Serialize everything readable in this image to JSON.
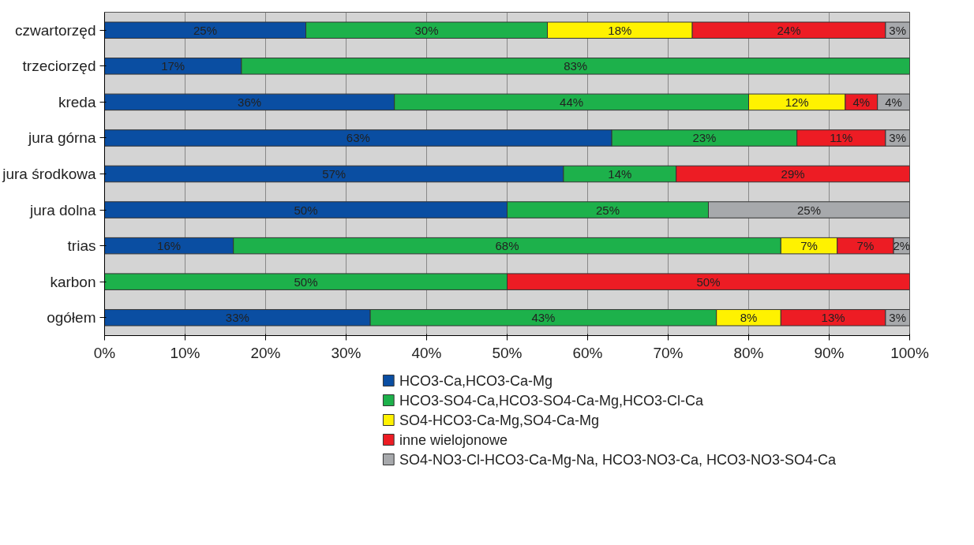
{
  "chart_data": {
    "type": "bar",
    "orientation": "horizontal",
    "stacked": true,
    "categories": [
      "czwartorzęd",
      "trzeciorzęd",
      "kreda",
      "jura górna",
      "jura środkowa",
      "jura dolna",
      "trias",
      "karbon",
      "ogółem"
    ],
    "series": [
      {
        "name": "HCO3-Ca,HCO3-Ca-Mg",
        "color": "#0a4ea2",
        "values": [
          25,
          17,
          36,
          63,
          57,
          50,
          16,
          null,
          33
        ],
        "value_labels": [
          "25%",
          "17%",
          "36%",
          "63%",
          "57%",
          "50%",
          "16%",
          null,
          "33%"
        ]
      },
      {
        "name": "HCO3-SO4-Ca,HCO3-SO4-Ca-Mg,HCO3-Cl-Ca",
        "color": "#1db14b",
        "values": [
          30,
          83,
          44,
          23,
          14,
          25,
          68,
          50,
          43
        ],
        "value_labels": [
          "30%",
          "83%",
          "44%",
          "23%",
          "14%",
          "25%",
          "68%",
          "50%",
          "43%"
        ]
      },
      {
        "name": "SO4-HCO3-Ca-Mg,SO4-Ca-Mg",
        "color": "#fff200",
        "values": [
          18,
          null,
          12,
          null,
          null,
          null,
          7,
          null,
          8
        ],
        "value_labels": [
          "18%",
          null,
          "12%",
          null,
          null,
          null,
          "7%",
          null,
          "8%"
        ]
      },
      {
        "name": "inne wielojonowe",
        "color": "#ed1c24",
        "values": [
          24,
          null,
          4,
          11,
          29,
          null,
          7,
          50,
          13
        ],
        "value_labels": [
          "24%",
          null,
          "4%",
          "11%",
          "29%",
          null,
          "7%",
          "50%",
          "13%"
        ]
      },
      {
        "name": "SO4-NO3-Cl-HCO3-Ca-Mg-Na, HCO3-NO3-Ca, HCO3-NO3-SO4-Ca",
        "color": "#a7a9ac",
        "values": [
          3,
          null,
          4,
          3,
          null,
          25,
          2,
          null,
          3
        ],
        "value_labels": [
          "3%",
          null,
          "4%",
          "3%",
          null,
          "25%",
          "2%",
          null,
          "3%"
        ]
      }
    ],
    "xlim": [
      0,
      100
    ],
    "xticks": [
      {
        "value": 0,
        "label": "0%"
      },
      {
        "value": 10,
        "label": "10%"
      },
      {
        "value": 20,
        "label": "20%"
      },
      {
        "value": 30,
        "label": "30%"
      },
      {
        "value": 40,
        "label": "40%"
      },
      {
        "value": 50,
        "label": "50%"
      },
      {
        "value": 60,
        "label": "60%"
      },
      {
        "value": 70,
        "label": "70%"
      },
      {
        "value": 80,
        "label": "80%"
      },
      {
        "value": 90,
        "label": "90%"
      },
      {
        "value": 100,
        "label": "100%"
      }
    ],
    "grid": "x",
    "legend": "bottom"
  }
}
